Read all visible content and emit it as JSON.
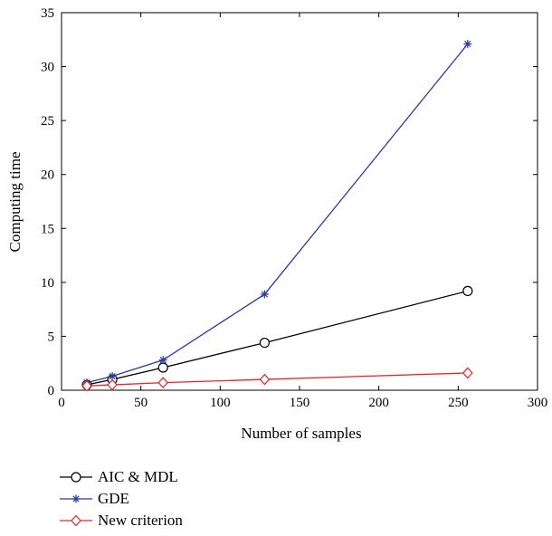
{
  "chart_data": {
    "type": "line",
    "title": "",
    "xlabel": "Number of samples",
    "ylabel": "Computing time",
    "xlim": [
      0,
      300
    ],
    "ylim": [
      0,
      35
    ],
    "xticks": [
      0,
      50,
      100,
      150,
      200,
      250,
      300
    ],
    "yticks": [
      0,
      5,
      10,
      15,
      20,
      25,
      30,
      35
    ],
    "grid": false,
    "legend_position": "bottom-left, below the plot",
    "x": [
      16,
      32,
      64,
      128,
      256
    ],
    "series": [
      {
        "name": "AIC & MDL",
        "marker": "circle",
        "color": "#000000",
        "values": [
          0.5,
          1.0,
          2.1,
          4.4,
          9.2
        ]
      },
      {
        "name": "GDE",
        "marker": "star",
        "color": "#2b3a9e",
        "values": [
          0.7,
          1.3,
          2.8,
          8.9,
          32.1
        ]
      },
      {
        "name": "New criterion",
        "marker": "diamond",
        "color": "#e8242a",
        "values": [
          0.4,
          0.5,
          0.7,
          1.0,
          1.6
        ]
      }
    ]
  }
}
